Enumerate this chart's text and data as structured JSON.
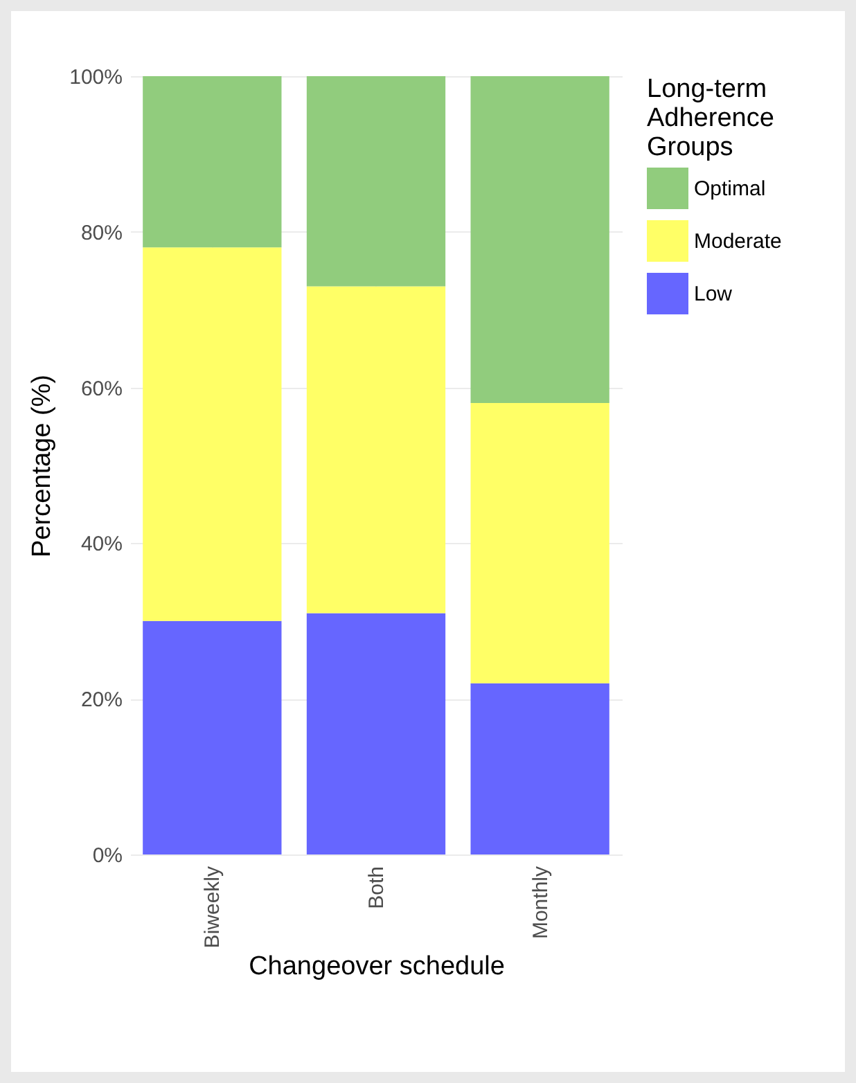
{
  "chart_data": {
    "type": "bar",
    "stacked": true,
    "xlabel": "Changeover schedule",
    "ylabel": "Percentage (%)",
    "legend_title": "Long-term Adherence Groups",
    "categories": [
      "Biweekly",
      "Both",
      "Monthly"
    ],
    "series": [
      {
        "name": "Low",
        "color": "#6666ff",
        "values": [
          30,
          31,
          22
        ]
      },
      {
        "name": "Moderate",
        "color": "#ffff66",
        "values": [
          48,
          42,
          36
        ]
      },
      {
        "name": "Optimal",
        "color": "#91cc7d",
        "values": [
          22,
          27,
          42
        ]
      }
    ],
    "ylim": [
      0,
      100
    ],
    "yticks": [
      {
        "value": 0,
        "label": "0%"
      },
      {
        "value": 20,
        "label": "20%"
      },
      {
        "value": 40,
        "label": "40%"
      },
      {
        "value": 60,
        "label": "60%"
      },
      {
        "value": 80,
        "label": "80%"
      },
      {
        "value": 100,
        "label": "100%"
      }
    ],
    "grid": true,
    "legend": "right"
  }
}
